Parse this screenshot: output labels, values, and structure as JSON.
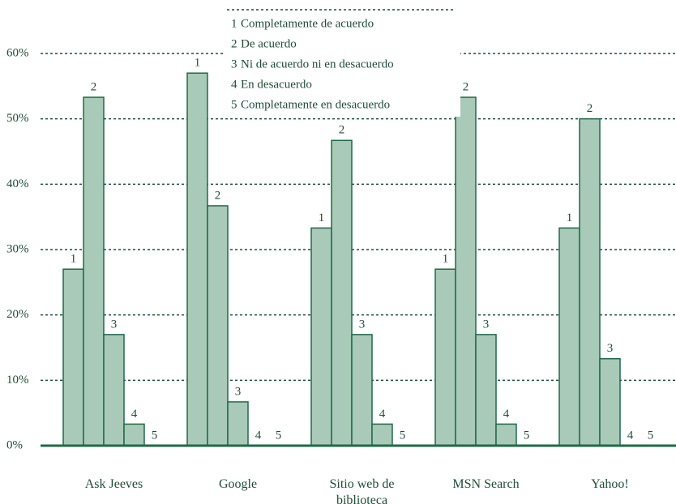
{
  "chart_data": {
    "type": "bar",
    "categories": [
      "Ask Jeeves",
      "Google",
      "Sitio web de biblioteca",
      "MSN Search",
      "Yahoo!"
    ],
    "series": [
      {
        "label": "1",
        "name": "Completamente de acuerdo",
        "color": "#a9c9b9",
        "values": [
          27,
          57,
          33.3,
          27,
          33.3
        ]
      },
      {
        "label": "2",
        "name": "De acuerdo",
        "color": "#a9c9b9",
        "values": [
          53.3,
          36.7,
          46.7,
          53.3,
          50
        ]
      },
      {
        "label": "3",
        "name": "Ni de acuerdo ni en desacuerdo",
        "color": "#a9c9b9",
        "values": [
          17,
          6.7,
          17,
          17,
          13.3
        ]
      },
      {
        "label": "4",
        "name": "En desacuerdo",
        "color": "#a9c9b9",
        "values": [
          3.3,
          0,
          3.3,
          3.3,
          0
        ]
      },
      {
        "label": "5",
        "name": "Completamente en desacuerdo",
        "color": "#a9c9b9",
        "values": [
          0,
          0,
          0,
          0,
          0
        ]
      }
    ],
    "ylim": [
      0,
      60
    ],
    "yticks": [
      {
        "value": 0,
        "label": "0%"
      },
      {
        "value": 10,
        "label": "10%"
      },
      {
        "value": 20,
        "label": "20%"
      },
      {
        "value": 30,
        "label": "30%"
      },
      {
        "value": 40,
        "label": "40%"
      },
      {
        "value": 50,
        "label": "50%"
      },
      {
        "value": 60,
        "label": "60%"
      }
    ],
    "grid": true
  }
}
